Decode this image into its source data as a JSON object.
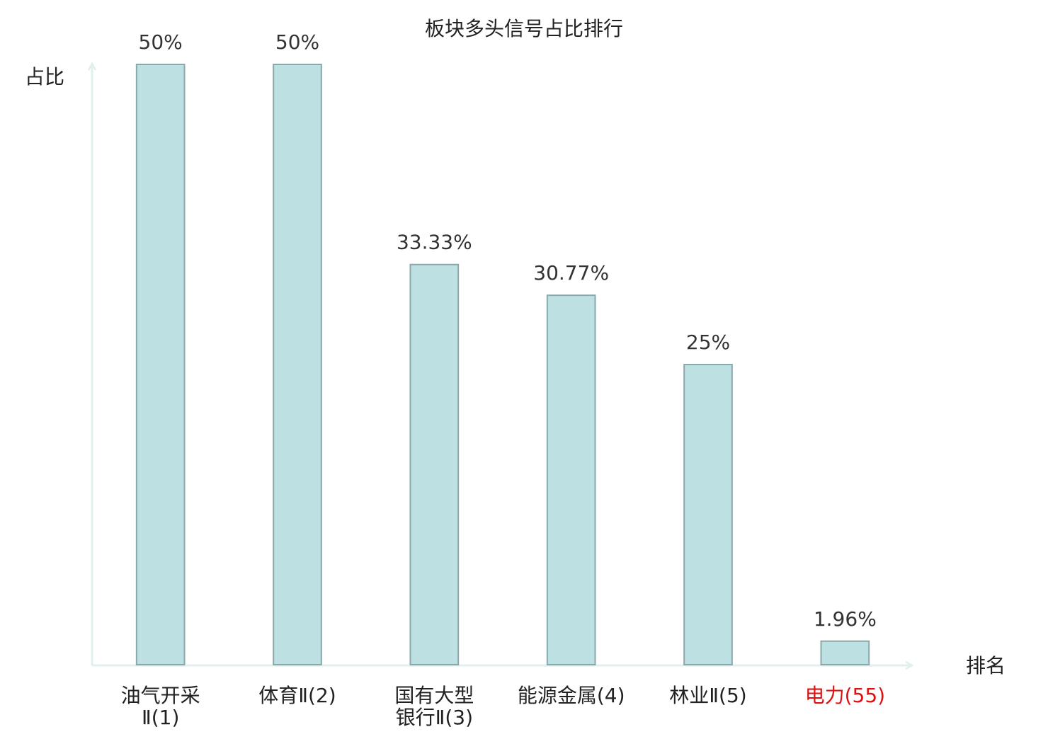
{
  "chart_data": {
    "type": "bar",
    "title": "板块多头信号占比排行",
    "y_label": "占比",
    "x_label": "排名",
    "categories": [
      "油气开采Ⅱ(1)",
      "体育Ⅱ(2)",
      "国有大型银行Ⅱ(3)",
      "能源金属(4)",
      "林业Ⅱ(5)",
      "电力(55)"
    ],
    "values": [
      50,
      50,
      33.33,
      30.77,
      25,
      1.96
    ],
    "value_labels": [
      "50%",
      "50%",
      "33.33%",
      "30.77%",
      "25%",
      "1.96%"
    ],
    "color": "#bde0e2",
    "edge_color": "#8aa8aa",
    "highlight_index": 5,
    "highlight_color": "#e01010",
    "ylim": [
      0,
      50
    ]
  }
}
